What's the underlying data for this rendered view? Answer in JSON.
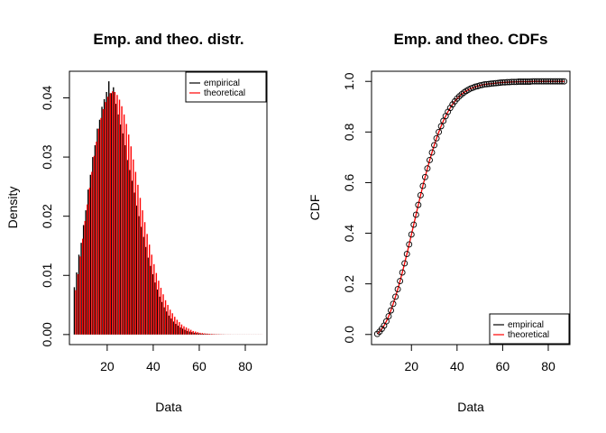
{
  "chart_data": [
    {
      "type": "bar",
      "title": "Emp. and theo. distr.",
      "xlabel": "Data",
      "ylabel": "Density",
      "xlim": [
        3.6,
        89.4
      ],
      "ylim": [
        -0.0017,
        0.0445
      ],
      "xticks": [
        "20",
        "40",
        "60",
        "80"
      ],
      "yticks": [
        "0.00",
        "0.01",
        "0.02",
        "0.03",
        "0.04"
      ],
      "legend": {
        "position": "top-right",
        "entries": [
          "empirical",
          "theoretical"
        ]
      },
      "colors": {
        "empirical": "#000000",
        "theoretical": "#ff0000"
      },
      "series": [
        {
          "name": "empirical",
          "x": [
            6,
            7,
            8,
            9,
            10,
            11,
            12,
            13,
            14,
            15,
            16,
            17,
            18,
            19,
            20,
            21,
            22,
            23,
            24,
            25,
            26,
            27,
            28,
            29,
            30,
            31,
            32,
            33,
            34,
            35,
            36,
            37,
            38,
            39,
            40,
            41,
            42,
            43,
            44,
            45,
            46,
            47,
            48,
            49,
            50,
            51,
            52,
            53,
            54,
            55,
            56,
            57,
            58,
            59,
            60,
            61,
            62,
            63,
            64,
            65,
            66,
            67,
            68,
            69,
            70,
            71,
            72,
            73,
            74,
            75,
            76,
            77,
            78,
            79,
            80,
            81,
            82,
            83,
            84,
            85,
            86,
            87
          ],
          "values": [
            0.008,
            0.0105,
            0.0135,
            0.0155,
            0.0185,
            0.021,
            0.0245,
            0.027,
            0.03,
            0.032,
            0.0348,
            0.0363,
            0.0385,
            0.0398,
            0.041,
            0.0428,
            0.0408,
            0.0418,
            0.039,
            0.0372,
            0.0355,
            0.034,
            0.032,
            0.0295,
            0.0278,
            0.026,
            0.024,
            0.0218,
            0.02,
            0.0182,
            0.0165,
            0.0148,
            0.013,
            0.0116,
            0.0102,
            0.0088,
            0.0076,
            0.0064,
            0.0055,
            0.0046,
            0.0039,
            0.0032,
            0.0027,
            0.0022,
            0.0018,
            0.0015,
            0.0012,
            0.001,
            0.0008,
            0.0006,
            0.0005,
            0.0004,
            0.0003,
            0.00025,
            0.0002,
            0.00015,
            0.00012,
            0.0001,
            8e-05,
            6e-05,
            5e-05,
            4e-05,
            3e-05,
            3e-05,
            2e-05,
            2e-05,
            1e-05,
            1e-05,
            1e-05,
            1e-05,
            1e-05,
            1e-05,
            1e-05,
            1e-05,
            1e-05,
            1e-05,
            1e-05,
            1e-05,
            1e-05,
            1e-05,
            1e-05,
            1e-05
          ]
        },
        {
          "name": "theoretical",
          "x": [
            6,
            7,
            8,
            9,
            10,
            11,
            12,
            13,
            14,
            15,
            16,
            17,
            18,
            19,
            20,
            21,
            22,
            23,
            24,
            25,
            26,
            27,
            28,
            29,
            30,
            31,
            32,
            33,
            34,
            35,
            36,
            37,
            38,
            39,
            40,
            41,
            42,
            43,
            44,
            45,
            46,
            47,
            48,
            49,
            50,
            51,
            52,
            53,
            54,
            55,
            56,
            57,
            58,
            59,
            60,
            61,
            62,
            63,
            64,
            65,
            66,
            67,
            68,
            69,
            70,
            71,
            72,
            73,
            74,
            75,
            76,
            77,
            78,
            79,
            80,
            81,
            82,
            83,
            84,
            85,
            86,
            87
          ],
          "values": [
            0.0075,
            0.0102,
            0.0132,
            0.0162,
            0.0192,
            0.022,
            0.0248,
            0.0275,
            0.0302,
            0.0326,
            0.0348,
            0.0366,
            0.0381,
            0.0393,
            0.0402,
            0.0408,
            0.0411,
            0.041,
            0.0405,
            0.0397,
            0.0386,
            0.0372,
            0.0356,
            0.0338,
            0.0318,
            0.0296,
            0.0275,
            0.0253,
            0.0231,
            0.021,
            0.019,
            0.017,
            0.0152,
            0.0135,
            0.0119,
            0.0104,
            0.0091,
            0.0079,
            0.0068,
            0.0058,
            0.005,
            0.0042,
            0.0036,
            0.003,
            0.0025,
            0.0021,
            0.0017,
            0.0014,
            0.0012,
            0.001,
            0.0008,
            0.0006,
            0.0005,
            0.0004,
            0.0003,
            0.00025,
            0.0002,
            0.00016,
            0.00013,
            0.0001,
            8e-05,
            6e-05,
            5e-05,
            4e-05,
            3e-05,
            2e-05,
            2e-05,
            2e-05,
            1e-05,
            1e-05,
            1e-05,
            1e-05,
            1e-05,
            1e-05,
            1e-05,
            1e-05,
            1e-05,
            1e-05,
            1e-05,
            1e-05,
            1e-05,
            1e-05
          ]
        }
      ]
    },
    {
      "type": "scatter",
      "title": "Emp. and theo. CDFs",
      "xlabel": "Data",
      "ylabel": "CDF",
      "xlim": [
        2.5,
        89.5
      ],
      "ylim": [
        -0.04,
        1.04
      ],
      "xticks": [
        "20",
        "40",
        "60",
        "80"
      ],
      "yticks": [
        "0.0",
        "0.2",
        "0.4",
        "0.6",
        "0.8",
        "1.0"
      ],
      "legend": {
        "position": "bottom-right",
        "entries": [
          "empirical",
          "theoretical"
        ]
      },
      "colors": {
        "empirical": "#000000",
        "theoretical": "#ff0000"
      },
      "series": [
        {
          "name": "empirical",
          "x": [
            5,
            6,
            7,
            8,
            9,
            10,
            11,
            12,
            13,
            14,
            15,
            16,
            17,
            18,
            19,
            20,
            21,
            22,
            23,
            24,
            25,
            26,
            27,
            28,
            29,
            30,
            31,
            32,
            33,
            34,
            35,
            36,
            37,
            38,
            39,
            40,
            41,
            42,
            43,
            44,
            45,
            46,
            47,
            48,
            49,
            50,
            51,
            52,
            53,
            54,
            55,
            56,
            57,
            58,
            59,
            60,
            61,
            62,
            63,
            64,
            65,
            66,
            67,
            68,
            69,
            70,
            71,
            72,
            73,
            74,
            75,
            76,
            77,
            78,
            79,
            80,
            81,
            82,
            83,
            84,
            85,
            86,
            87
          ],
          "values": [
            0.002,
            0.011,
            0.022,
            0.035,
            0.052,
            0.072,
            0.095,
            0.121,
            0.149,
            0.179,
            0.211,
            0.245,
            0.281,
            0.318,
            0.356,
            0.395,
            0.434,
            0.473,
            0.512,
            0.55,
            0.587,
            0.622,
            0.656,
            0.689,
            0.719,
            0.748,
            0.775,
            0.8,
            0.823,
            0.844,
            0.863,
            0.88,
            0.895,
            0.909,
            0.921,
            0.932,
            0.941,
            0.949,
            0.956,
            0.962,
            0.967,
            0.972,
            0.975,
            0.979,
            0.981,
            0.984,
            0.986,
            0.988,
            0.989,
            0.99,
            0.991,
            0.992,
            0.993,
            0.994,
            0.995,
            0.996,
            0.996,
            0.997,
            0.997,
            0.998,
            0.998,
            0.998,
            0.999,
            0.999,
            0.999,
            0.999,
            0.999,
            0.999,
            1.0,
            1.0,
            1.0,
            1.0,
            1.0,
            1.0,
            1.0,
            1.0,
            1.0,
            1.0,
            1.0,
            1.0,
            1.0,
            1.0,
            1.0
          ]
        },
        {
          "name": "theoretical",
          "x": [
            5,
            6,
            7,
            8,
            9,
            10,
            11,
            12,
            13,
            14,
            15,
            16,
            17,
            18,
            19,
            20,
            21,
            22,
            23,
            24,
            25,
            26,
            27,
            28,
            29,
            30,
            31,
            32,
            33,
            34,
            35,
            36,
            37,
            38,
            39,
            40,
            41,
            42,
            43,
            44,
            45,
            46,
            47,
            48,
            49,
            50,
            51,
            52,
            53,
            54,
            55,
            56,
            57,
            58,
            59,
            60,
            61,
            62,
            63,
            64,
            65,
            66,
            67,
            68,
            69,
            70,
            71,
            72,
            73,
            74,
            75,
            76,
            77,
            78,
            79,
            80,
            81,
            82,
            83,
            84,
            85,
            86,
            87
          ],
          "values": [
            0.002,
            0.011,
            0.022,
            0.035,
            0.052,
            0.072,
            0.095,
            0.121,
            0.149,
            0.179,
            0.211,
            0.245,
            0.281,
            0.318,
            0.356,
            0.395,
            0.434,
            0.473,
            0.512,
            0.55,
            0.587,
            0.622,
            0.656,
            0.689,
            0.719,
            0.748,
            0.775,
            0.8,
            0.823,
            0.844,
            0.863,
            0.88,
            0.895,
            0.909,
            0.921,
            0.932,
            0.941,
            0.949,
            0.956,
            0.962,
            0.967,
            0.972,
            0.975,
            0.979,
            0.981,
            0.984,
            0.986,
            0.988,
            0.989,
            0.99,
            0.991,
            0.992,
            0.993,
            0.994,
            0.995,
            0.996,
            0.996,
            0.997,
            0.997,
            0.998,
            0.998,
            0.998,
            0.999,
            0.999,
            0.999,
            0.999,
            0.999,
            0.999,
            1.0,
            1.0,
            1.0,
            1.0,
            1.0,
            1.0,
            1.0,
            1.0,
            1.0,
            1.0,
            1.0,
            1.0,
            1.0,
            1.0,
            1.0
          ]
        }
      ]
    }
  ]
}
